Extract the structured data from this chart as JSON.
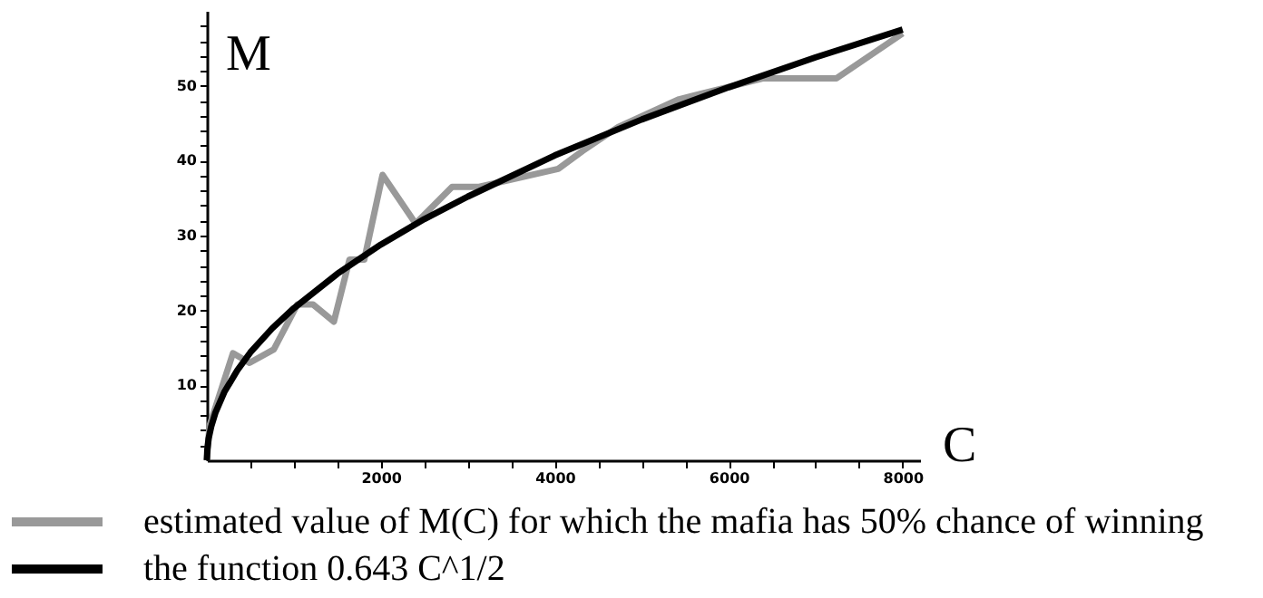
{
  "chart_data": {
    "type": "line",
    "xlabel": "C",
    "ylabel": "M",
    "xlim": [
      0,
      8200
    ],
    "ylim": [
      0,
      60
    ],
    "xticks": [
      {
        "value": 500,
        "label": null
      },
      {
        "value": 1000,
        "label": null
      },
      {
        "value": 1500,
        "label": null
      },
      2000,
      {
        "value": 2500,
        "label": null
      },
      {
        "value": 3000,
        "label": null
      },
      {
        "value": 3500,
        "label": null
      },
      4000,
      {
        "value": 4500,
        "label": null
      },
      {
        "value": 5000,
        "label": null
      },
      {
        "value": 5500,
        "label": null
      },
      6000,
      {
        "value": 6500,
        "label": null
      },
      {
        "value": 7000,
        "label": null
      },
      {
        "value": 7500,
        "label": null
      },
      8000
    ],
    "yticks": [
      {
        "value": 2,
        "label": null
      },
      {
        "value": 4,
        "label": null
      },
      {
        "value": 6,
        "label": null
      },
      {
        "value": 8,
        "label": null
      },
      10,
      {
        "value": 12,
        "label": null
      },
      {
        "value": 14,
        "label": null
      },
      {
        "value": 16,
        "label": null
      },
      {
        "value": 18,
        "label": null
      },
      20,
      {
        "value": 22,
        "label": null
      },
      {
        "value": 24,
        "label": null
      },
      {
        "value": 26,
        "label": null
      },
      {
        "value": 28,
        "label": null
      },
      30,
      {
        "value": 32,
        "label": null
      },
      {
        "value": 34,
        "label": null
      },
      {
        "value": 36,
        "label": null
      },
      {
        "value": 38,
        "label": null
      },
      40,
      {
        "value": 42,
        "label": null
      },
      {
        "value": 44,
        "label": null
      },
      {
        "value": 46,
        "label": null
      },
      {
        "value": 48,
        "label": null
      },
      50,
      {
        "value": 52,
        "label": null
      },
      {
        "value": 54,
        "label": null
      },
      {
        "value": 56,
        "label": null
      },
      {
        "value": 58,
        "label": null
      }
    ],
    "grid": false,
    "legend": "bottom",
    "series": [
      {
        "name": "estimated value of M(C) for which the mafia has 50% chance of winning",
        "color": "#999999",
        "x": [
          0,
          30,
          300,
          490,
          770,
          1040,
          1220,
          1460,
          1640,
          1810,
          2020,
          2400,
          2820,
          3130,
          4040,
          4320,
          4730,
          5430,
          6400,
          7240,
          8000
        ],
        "values": [
          0,
          4.6,
          14.3,
          13,
          14.8,
          20.8,
          20.8,
          18.5,
          26.8,
          26.8,
          38.1,
          31.6,
          36.5,
          36.5,
          38.9,
          41.3,
          44.5,
          48.2,
          51,
          51,
          57
        ]
      },
      {
        "name": "the function 0.643 C^1/2",
        "color": "#000000",
        "x": [
          0,
          5,
          20,
          50,
          100,
          200,
          350,
          500,
          750,
          1000,
          1500,
          2000,
          2500,
          3000,
          4000,
          5000,
          6000,
          7000,
          8000
        ],
        "values": [
          0,
          1.4,
          2.9,
          4.5,
          6.4,
          9.1,
          12,
          14.4,
          17.6,
          20.3,
          24.9,
          28.8,
          32.2,
          35.2,
          40.7,
          45.5,
          49.8,
          53.8,
          57.5
        ]
      }
    ]
  }
}
